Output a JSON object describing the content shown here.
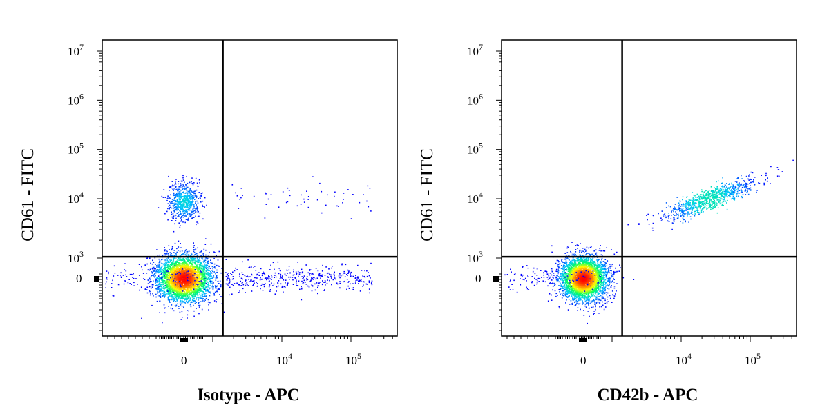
{
  "chart_data": [
    {
      "type": "scatter",
      "xlabel": "Isotype - APC",
      "ylabel": "CD61 - FITC",
      "x_scale": "biexponential",
      "y_scale": "biexponential",
      "x_ticks": [
        {
          "value": 0,
          "base": "0",
          "exp": ""
        },
        {
          "value": 10000,
          "base": "10",
          "exp": "4"
        },
        {
          "value": 100000,
          "base": "10",
          "exp": "5"
        }
      ],
      "y_ticks": [
        {
          "value": 0,
          "base": "0",
          "exp": ""
        },
        {
          "value": 1000,
          "base": "10",
          "exp": "3"
        },
        {
          "value": 10000,
          "base": "10",
          "exp": "4"
        },
        {
          "value": 100000,
          "base": "10",
          "exp": "5"
        },
        {
          "value": 1000000,
          "base": "10",
          "exp": "6"
        },
        {
          "value": 10000000,
          "base": "10",
          "exp": "7"
        }
      ],
      "quadrant_gate": {
        "x": 1500,
        "y": 2000
      },
      "populations": [
        {
          "label": "CD61- isotype-",
          "x_center": 0,
          "y_center": 0,
          "density": "high",
          "spread": "wide"
        },
        {
          "label": "CD61+ isotype-",
          "x_center": 0,
          "y_center": 9000,
          "density": "medium",
          "spread": "narrow"
        },
        {
          "label": "CD61- isotype+ scatter",
          "x_range": [
            1500,
            200000
          ],
          "y_center": 0,
          "density": "low"
        },
        {
          "label": "CD61+ isotype+ scatter",
          "x_range": [
            1500,
            200000
          ],
          "y_center": 10000,
          "density": "very-low"
        }
      ],
      "colormap": [
        "#0000ff",
        "#00c8ff",
        "#00ff64",
        "#ffff00",
        "#ff8000",
        "#ff0000"
      ],
      "grid": false
    },
    {
      "type": "scatter",
      "xlabel": "CD42b - APC",
      "ylabel": "CD61 - FITC",
      "x_scale": "biexponential",
      "y_scale": "biexponential",
      "x_ticks": [
        {
          "value": 0,
          "base": "0",
          "exp": ""
        },
        {
          "value": 10000,
          "base": "10",
          "exp": "4"
        },
        {
          "value": 100000,
          "base": "10",
          "exp": "5"
        }
      ],
      "y_ticks": [
        {
          "value": 0,
          "base": "0",
          "exp": ""
        },
        {
          "value": 1000,
          "base": "10",
          "exp": "3"
        },
        {
          "value": 10000,
          "base": "10",
          "exp": "4"
        },
        {
          "value": 100000,
          "base": "10",
          "exp": "5"
        },
        {
          "value": 1000000,
          "base": "10",
          "exp": "6"
        },
        {
          "value": 10000000,
          "base": "10",
          "exp": "7"
        }
      ],
      "quadrant_gate": {
        "x": 1500,
        "y": 2000
      },
      "populations": [
        {
          "label": "CD61- CD42b-",
          "x_center": 0,
          "y_center": 0,
          "density": "high",
          "spread": "medium"
        },
        {
          "label": "CD61+ CD42b+",
          "x_center": 25000,
          "y_center": 10000,
          "density": "medium",
          "shape": "diagonal"
        }
      ],
      "colormap": [
        "#0000ff",
        "#00c8ff",
        "#00ff64",
        "#ffff00",
        "#ff8000",
        "#ff0000"
      ],
      "grid": false
    }
  ]
}
